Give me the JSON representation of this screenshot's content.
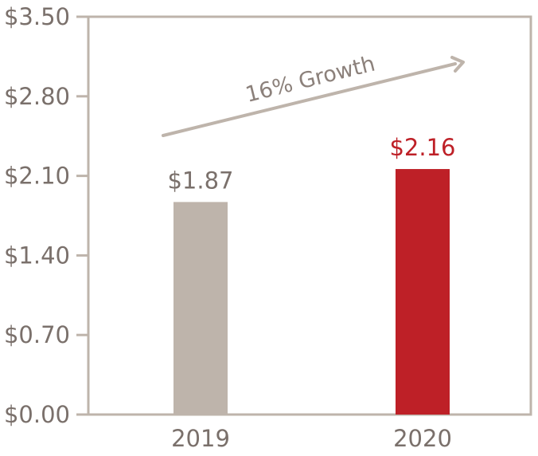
{
  "chart_data": {
    "type": "bar",
    "title": "",
    "xlabel": "",
    "ylabel": "",
    "categories": [
      "2019",
      "2020"
    ],
    "values": [
      1.87,
      2.16
    ],
    "value_labels": [
      "$1.87",
      "$2.16"
    ],
    "bar_colors": [
      "#beb4ab",
      "#be2027"
    ],
    "label_colors": [
      "#7a706b",
      "#be2027"
    ],
    "ylim": [
      0,
      3.5
    ],
    "yticks": [
      0,
      0.7,
      1.4,
      2.1,
      2.8,
      3.5
    ],
    "ytick_labels": [
      "$0.00",
      "$0.70",
      "$1.40",
      "$2.10",
      "$2.80",
      "$3.50"
    ],
    "grid": false,
    "legend": "none",
    "annotation": {
      "text": "16% Growth",
      "arrow": "rising, from 2019 toward 2020"
    }
  },
  "colors": {
    "frame": "#beb4ab",
    "arrow": "#beb4ab",
    "text": "#7a706b"
  }
}
